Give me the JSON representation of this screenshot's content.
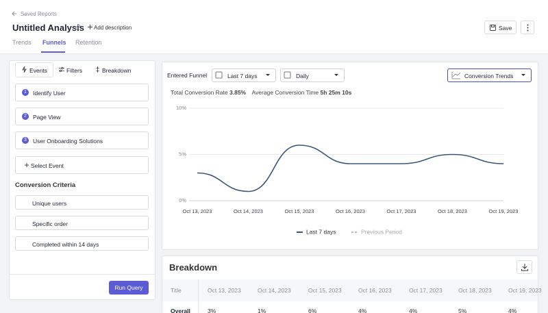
{
  "header": {
    "back": "Saved Reports",
    "title": "Untitled Analysis",
    "add_description": "Add description",
    "save": "Save",
    "tabs": [
      "Trends",
      "Funnels",
      "Retention"
    ]
  },
  "sidebar": {
    "tabs": [
      "Events",
      "Filters",
      "Breakdown"
    ],
    "steps": [
      {
        "number": "1",
        "label": "Identify User"
      },
      {
        "number": "2",
        "label": "Page View"
      },
      {
        "number": "3",
        "label": "User Onboarding Solutions"
      }
    ],
    "select_event": "Select Event",
    "criteria_title": "Conversion Criteria",
    "criteria": [
      "Unique users",
      "Specific order",
      "Completed within 14 days"
    ],
    "run": "Run Query"
  },
  "toolbar": {
    "label": "Entered Funnel",
    "range": "Last 7 days",
    "interval": "Daily",
    "view": "Conversion Trends"
  },
  "summary": {
    "rate_label": "Total Conversion Rate",
    "rate": "3.85%",
    "time_label": "Average Conversion Time",
    "time": "5h 25m 10s"
  },
  "chart_data": {
    "type": "line",
    "categories": [
      "Oct 13, 2023",
      "Oct 14, 2023",
      "Oct 15, 2023",
      "Oct 16, 2023",
      "Oct 17, 2023",
      "Oct 18, 2023",
      "Oct 19, 2023"
    ],
    "series": [
      {
        "name": "Last 7 days",
        "color": "#3b5577",
        "values": [
          3,
          1,
          6,
          4,
          4,
          5,
          4
        ]
      },
      {
        "name": "Previous Period",
        "color": "#b8bcc4",
        "values": [
          null,
          null,
          null,
          null,
          null,
          null,
          null
        ]
      }
    ],
    "ylim": [
      0,
      10
    ],
    "yticks": [
      {
        "value": 0,
        "label": "0%"
      },
      {
        "value": 5,
        "label": "5%"
      },
      {
        "value": 10,
        "label": "10%"
      }
    ],
    "grid": true
  },
  "breakdown": {
    "title": "Breakdown",
    "columns": [
      "Title",
      "Oct 13, 2023",
      "Oct 14, 2023",
      "Oct 15, 2023",
      "Oct 16, 2023",
      "Oct 17, 2023",
      "Oct 18, 2023",
      "Oct 19, 2023"
    ],
    "rows": [
      [
        "Overall",
        "3%",
        "1%",
        "6%",
        "4%",
        "4%",
        "5%",
        "4%"
      ]
    ]
  }
}
